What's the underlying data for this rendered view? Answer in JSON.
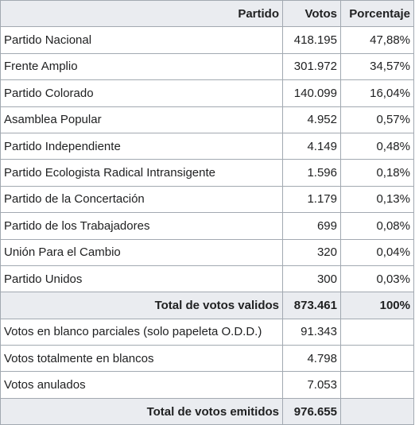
{
  "table": {
    "header": [
      "Partido",
      "Votos",
      "Porcentaje"
    ],
    "parties": [
      [
        "Partido Nacional",
        "418.195",
        "47,88%"
      ],
      [
        "Frente Amplio",
        "301.972",
        "34,57%"
      ],
      [
        "Partido Colorado",
        "140.099",
        "16,04%"
      ],
      [
        "Asamblea Popular",
        "4.952",
        "0,57%"
      ],
      [
        "Partido Independiente",
        "4.149",
        "0,48%"
      ],
      [
        "Partido Ecologista Radical Intransigente",
        "1.596",
        "0,18%"
      ],
      [
        "Partido de la Concertación",
        "1.179",
        "0,13%"
      ],
      [
        "Partido de los Trabajadores",
        "699",
        "0,08%"
      ],
      [
        "Unión Para el Cambio",
        "320",
        "0,04%"
      ],
      [
        "Partido Unidos",
        "300",
        "0,03%"
      ]
    ],
    "valid_total": [
      "Total de votos validos",
      "873.461",
      "100%"
    ],
    "other_votes": [
      [
        "Votos en blanco parciales (solo papeleta O.D.D.)",
        "91.343"
      ],
      [
        "Votos totalmente en blancos",
        "4.798"
      ],
      [
        "Votos anulados",
        "7.053"
      ]
    ],
    "cast_total": [
      "Total de votos emitidos",
      "976.655"
    ]
  }
}
